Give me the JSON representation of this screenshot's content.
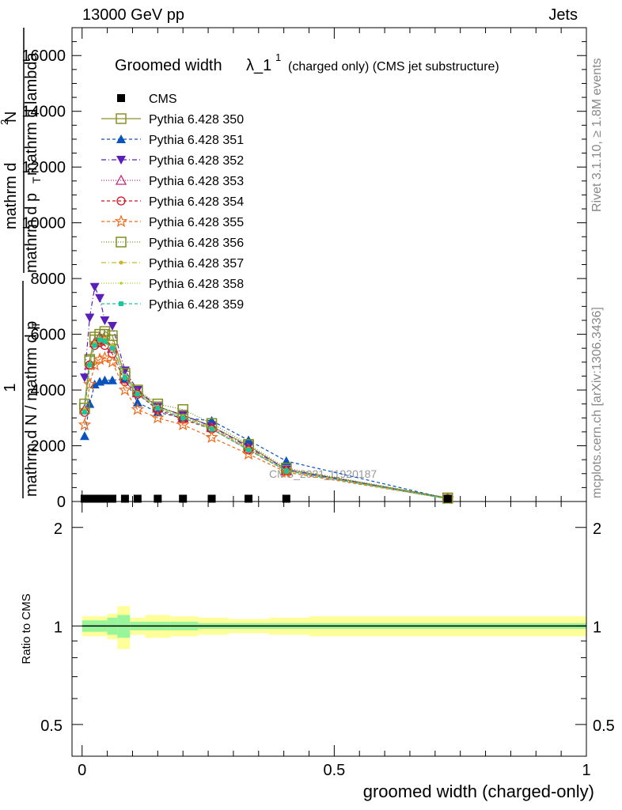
{
  "header": {
    "left": "13000 GeV pp",
    "right": "Jets"
  },
  "side_labels": {
    "rivet": "Rivet 3.1.10, ≥ 1.8M events",
    "mcplots": "mcplots.cern.ch [arXiv:1306.3436]"
  },
  "watermark": "CMS_2021_I1920187",
  "chart_data": {
    "type": "line",
    "title": "Groomed width λ_1^1 (charged only) (CMS jet substructure)",
    "title_parts": {
      "main": "Groomed width",
      "lambda": "λ_1",
      "sup": "1",
      "rest": "(charged only) (CMS jet substructure)"
    },
    "ylabel_lines": [
      "mathrm d²N",
      "mathrm d p_T mathrm d lambda",
      "1",
      "mathrm d N / mathrm d p_T"
    ],
    "ylabel_numerator": "mathrm d",
    "ylabel_denominator": "mathrm d p",
    "ylabel_t": "T",
    "ylabel_tail": "mathrm d lambda",
    "ylabel_ratio_top": "1",
    "ylabel_ratio_bottom": "mathrm d N / mathrm d p",
    "ylabel_ratio_t": "T",
    "ylabel_n": "N",
    "ylabel_two": "2",
    "xlabel": "groomed width (charged-only)",
    "ratio_ylabel": "Ratio to CMS",
    "xlim": [
      -0.02,
      1.0
    ],
    "ylim": [
      0,
      17000
    ],
    "ratio_ylim": [
      0.4,
      2.4
    ],
    "x_ticks": [
      "0",
      "0.5",
      "1"
    ],
    "y_ticks": [
      "0",
      "2000",
      "4000",
      "6000",
      "8000",
      "10000",
      "12000",
      "14000",
      "16000"
    ],
    "ratio_ticks": [
      "0.5",
      "1",
      "2"
    ],
    "x": [
      0.005,
      0.015,
      0.025,
      0.035,
      0.045,
      0.06,
      0.085,
      0.11,
      0.15,
      0.2,
      0.257,
      0.33,
      0.405,
      0.725
    ],
    "ratio_bins": [
      {
        "x0": 0.0,
        "x1": 0.05,
        "inner": 0.04,
        "outer": 0.07
      },
      {
        "x0": 0.05,
        "x1": 0.07,
        "inner": 0.06,
        "outer": 0.09
      },
      {
        "x0": 0.07,
        "x1": 0.095,
        "inner": 0.08,
        "outer": 0.15
      },
      {
        "x0": 0.095,
        "x1": 0.125,
        "inner": 0.03,
        "outer": 0.06
      },
      {
        "x0": 0.125,
        "x1": 0.175,
        "inner": 0.03,
        "outer": 0.08
      },
      {
        "x0": 0.175,
        "x1": 0.23,
        "inner": 0.03,
        "outer": 0.07
      },
      {
        "x0": 0.23,
        "x1": 0.29,
        "inner": 0.02,
        "outer": 0.06
      },
      {
        "x0": 0.29,
        "x1": 0.37,
        "inner": 0.02,
        "outer": 0.05
      },
      {
        "x0": 0.37,
        "x1": 0.45,
        "inner": 0.02,
        "outer": 0.06
      },
      {
        "x0": 0.45,
        "x1": 1.0,
        "inner": 0.02,
        "outer": 0.07
      }
    ],
    "series": [
      {
        "name": "CMS",
        "color": "#000000",
        "marker": "square-filled",
        "dash": "none",
        "values": [
          100,
          100,
          100,
          100,
          100,
          100,
          100,
          100,
          100,
          100,
          100,
          100,
          100,
          100
        ]
      },
      {
        "name": "Pythia 6.428 350",
        "color": "#8f8f2a",
        "marker": "square-open",
        "dash": "solid",
        "values": [
          3500,
          5100,
          5900,
          5800,
          6100,
          5950,
          4500,
          3950,
          3400,
          3100,
          2700,
          2000,
          1150,
          130
        ]
      },
      {
        "name": "Pythia 6.428 351",
        "color": "#0a52be",
        "marker": "triangle-up-filled",
        "dash": "4,3",
        "values": [
          2350,
          3500,
          4200,
          4300,
          4350,
          4350,
          4400,
          3550,
          3200,
          3000,
          2900,
          2200,
          1450,
          100
        ]
      },
      {
        "name": "Pythia 6.428 352",
        "color": "#5a1fb8",
        "marker": "triangle-down-filled",
        "dash": "6,3,1,3",
        "values": [
          4450,
          6600,
          7700,
          7300,
          6500,
          6300,
          4700,
          4000,
          3400,
          3100,
          2700,
          1950,
          1150,
          100
        ]
      },
      {
        "name": "Pythia 6.428 353",
        "color": "#c0287c",
        "marker": "triangle-up-open",
        "dash": "1,2",
        "values": [
          3300,
          4900,
          5700,
          5900,
          5800,
          5500,
          4400,
          3900,
          3350,
          3000,
          2650,
          1900,
          1100,
          100
        ]
      },
      {
        "name": "Pythia 6.428 354",
        "color": "#d0101f",
        "marker": "circle-open",
        "dash": "4,3",
        "values": [
          3200,
          4900,
          5600,
          5700,
          5600,
          5300,
          4300,
          3850,
          3300,
          2950,
          2600,
          1850,
          1100,
          100
        ]
      },
      {
        "name": "Pythia 6.428 355",
        "color": "#ee6a1a",
        "marker": "star-open",
        "dash": "4,3",
        "values": [
          2750,
          4200,
          4900,
          5100,
          5150,
          5000,
          4000,
          3300,
          3000,
          2750,
          2300,
          1700,
          1050,
          100
        ]
      },
      {
        "name": "Pythia 6.428 356",
        "color": "#7a8f1f",
        "marker": "square-open",
        "dash": "1,2",
        "values": [
          3350,
          5050,
          5800,
          6000,
          6000,
          5800,
          4600,
          4000,
          3500,
          3300,
          2800,
          2050,
          1200,
          120
        ]
      },
      {
        "name": "Pythia 6.428 357",
        "color": "#c9b62a",
        "marker": "dot",
        "dash": "6,3,1,3",
        "values": [
          3300,
          4950,
          5700,
          5850,
          5850,
          5600,
          4500,
          3900,
          3400,
          3050,
          2650,
          1900,
          1100,
          100
        ]
      },
      {
        "name": "Pythia 6.428 358",
        "color": "#b3d11e",
        "marker": "dot-small",
        "dash": "1,2",
        "values": [
          3250,
          4900,
          5600,
          5750,
          5700,
          5450,
          4400,
          3850,
          3350,
          3000,
          2600,
          1850,
          1100,
          100
        ]
      },
      {
        "name": "Pythia 6.428 359",
        "color": "#18c79a",
        "marker": "square-small-filled",
        "dash": "4,3",
        "values": [
          3200,
          4900,
          5600,
          5800,
          5750,
          5500,
          4450,
          3850,
          3350,
          3000,
          2600,
          1850,
          1100,
          100
        ]
      }
    ]
  }
}
